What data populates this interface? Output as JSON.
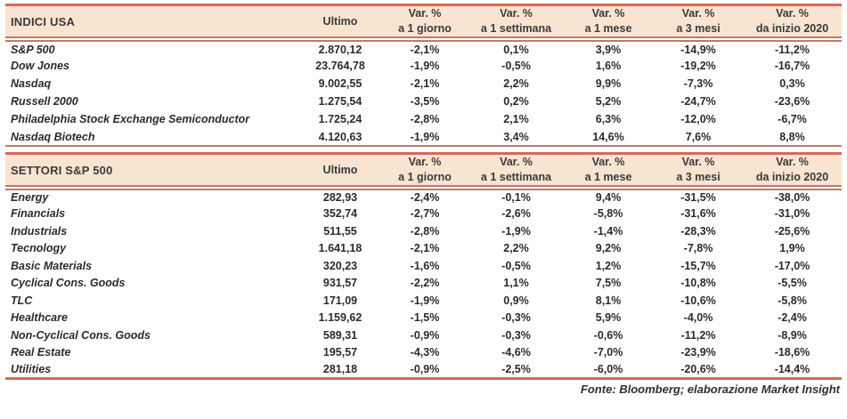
{
  "colors": {
    "accent_border": "#D5695C",
    "double_line": "#B97B6B",
    "header_background": "#F8E4D1",
    "text": "#2B2B2B"
  },
  "columns": {
    "ultimo": "Ultimo",
    "var_label": "Var. %",
    "periods": [
      "a 1 giorno",
      "a 1 settimana",
      "a 1 mese",
      "a 3 mesi",
      "da inizio 2020"
    ]
  },
  "tables": [
    {
      "title": "INDICI USA",
      "rows": [
        {
          "name": "S&P 500",
          "ultimo": "2.870,12",
          "vars": [
            "-2,1%",
            "0,1%",
            "3,9%",
            "-14,9%",
            "-11,2%"
          ]
        },
        {
          "name": "Dow Jones",
          "ultimo": "23.764,78",
          "vars": [
            "-1,9%",
            "-0,5%",
            "1,6%",
            "-19,2%",
            "-16,7%"
          ]
        },
        {
          "name": "Nasdaq",
          "ultimo": "9.002,55",
          "vars": [
            "-2,1%",
            "2,2%",
            "9,9%",
            "-7,3%",
            "0,3%"
          ]
        },
        {
          "name": "Russell 2000",
          "ultimo": "1.275,54",
          "vars": [
            "-3,5%",
            "0,2%",
            "5,2%",
            "-24,7%",
            "-23,6%"
          ]
        },
        {
          "name": "Philadelphia Stock Exchange Semiconductor",
          "ultimo": "1.725,24",
          "vars": [
            "-2,8%",
            "2,1%",
            "6,3%",
            "-12,0%",
            "-6,7%"
          ]
        },
        {
          "name": "Nasdaq Biotech",
          "ultimo": "4.120,63",
          "vars": [
            "-1,9%",
            "3,4%",
            "14,6%",
            "7,6%",
            "8,8%"
          ]
        }
      ]
    },
    {
      "title": "SETTORI S&P 500",
      "rows": [
        {
          "name": "Energy",
          "ultimo": "282,93",
          "vars": [
            "-2,4%",
            "-0,1%",
            "9,4%",
            "-31,5%",
            "-38,0%"
          ]
        },
        {
          "name": "Financials",
          "ultimo": "352,74",
          "vars": [
            "-2,7%",
            "-2,6%",
            "-5,8%",
            "-31,6%",
            "-31,0%"
          ]
        },
        {
          "name": "Industrials",
          "ultimo": "511,55",
          "vars": [
            "-2,8%",
            "-1,9%",
            "-1,4%",
            "-28,3%",
            "-25,6%"
          ]
        },
        {
          "name": "Tecnology",
          "ultimo": "1.641,18",
          "vars": [
            "-2,1%",
            "2,2%",
            "9,2%",
            "-7,8%",
            "1,9%"
          ]
        },
        {
          "name": "Basic Materials",
          "ultimo": "320,23",
          "vars": [
            "-1,6%",
            "-0,5%",
            "1,2%",
            "-15,7%",
            "-17,0%"
          ]
        },
        {
          "name": "Cyclical Cons. Goods",
          "ultimo": "931,57",
          "vars": [
            "-2,2%",
            "1,1%",
            "7,5%",
            "-10,8%",
            "-5,5%"
          ]
        },
        {
          "name": "TLC",
          "ultimo": "171,09",
          "vars": [
            "-1,9%",
            "0,9%",
            "8,1%",
            "-10,6%",
            "-5,8%"
          ]
        },
        {
          "name": "Healthcare",
          "ultimo": "1.159,62",
          "vars": [
            "-1,5%",
            "-0,3%",
            "5,9%",
            "-4,0%",
            "-2,4%"
          ]
        },
        {
          "name": "Non-Cyclical Cons. Goods",
          "ultimo": "589,31",
          "vars": [
            "-0,9%",
            "-0,3%",
            "-0,6%",
            "-11,2%",
            "-8,9%"
          ]
        },
        {
          "name": "Real Estate",
          "ultimo": "195,57",
          "vars": [
            "-4,3%",
            "-4,6%",
            "-7,0%",
            "-23,9%",
            "-18,6%"
          ]
        },
        {
          "name": "Utilities",
          "ultimo": "281,18",
          "vars": [
            "-0,9%",
            "-2,5%",
            "-6,0%",
            "-20,6%",
            "-14,4%"
          ]
        }
      ]
    }
  ],
  "footer": {
    "source": "Fonte: Bloomberg; elaborazione Market Insight"
  }
}
